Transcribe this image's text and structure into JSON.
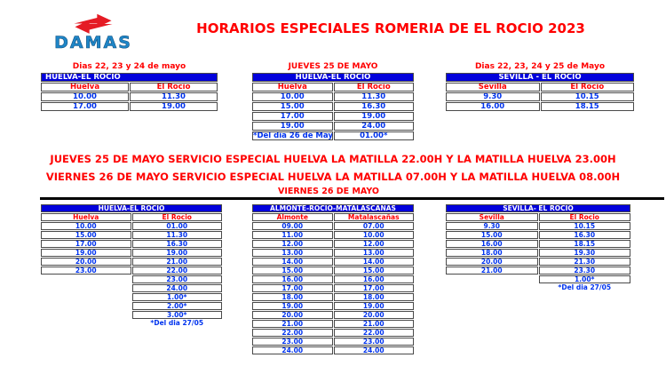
{
  "colors": {
    "header_bg": "#0302dc",
    "time_text": "#0033ee",
    "accent_red": "#ff0000",
    "logo_blue": "#1e86c8",
    "logo_red": "#e51b24"
  },
  "logo": {
    "text": "DAMAS"
  },
  "title": "HORARIOS ESPECIALES ROMERIA DE EL ROCIO 2023",
  "top_tables": [
    {
      "caption": "Dias 22, 23 y 24 de mayo",
      "header": "HUELVA-EL ROCIO",
      "header_align": "left",
      "columns": [
        "Huelva",
        "El Rocio"
      ],
      "rows": [
        [
          "10.00",
          "11.30"
        ],
        [
          "17.00",
          "19.00"
        ]
      ]
    },
    {
      "caption": "JUEVES 25 DE MAYO",
      "header": "HUELVA-EL ROCIO",
      "header_align": "center",
      "columns": [
        "Huelva",
        "El Rocio"
      ],
      "rows": [
        [
          "10.00",
          "11.30"
        ],
        [
          "15.00",
          "16.30"
        ],
        [
          "17.00",
          "19.00"
        ],
        [
          "19.00",
          "24.00"
        ],
        [
          "*Del dia 26 de Mayo",
          "01.00*"
        ]
      ]
    },
    {
      "caption": "Dias 22, 23, 24 y 25 de Mayo",
      "header": "SEVILLA - EL ROCIO",
      "header_align": "center",
      "columns": [
        "Sevilla",
        "El Rocio"
      ],
      "rows": [
        [
          "9.30",
          "10.15"
        ],
        [
          "16.00",
          "18.15"
        ]
      ]
    }
  ],
  "notices": [
    "JUEVES 25 DE MAYO SERVICIO ESPECIAL HUELVA LA MATILLA 22.00H Y LA MATILLA HUELVA 23.00H",
    "VIERNES 26 DE MAYO SERVICIO ESPECIAL HUELVA LA MATILLA 07.00H Y LA MATILLA HUELVA 08.00H"
  ],
  "section_title": "VIERNES 26 DE MAYO",
  "bottom_tables": [
    {
      "header": "HUELVA-EL ROCIO",
      "header_align": "center",
      "columns": [
        "Huelva",
        "El Rocio"
      ],
      "rows": [
        [
          "10.00",
          "01.00"
        ],
        [
          "15.00",
          "11.30"
        ],
        [
          "17.00",
          "16.30"
        ],
        [
          "19.00",
          "19.00"
        ],
        [
          "20.00",
          "21.00"
        ],
        [
          "23.00",
          "22.00"
        ],
        [
          null,
          "23.00"
        ],
        [
          null,
          "24.00"
        ],
        [
          null,
          "1.00*"
        ],
        [
          null,
          "2.00*"
        ],
        [
          null,
          "3.00*"
        ]
      ],
      "footnote": "*Del dia 27/05"
    },
    {
      "header": "ALMONTE-ROCIO-MATALASCANAS",
      "header_align": "center",
      "columns": [
        "Almonte",
        "Matalascañas"
      ],
      "rows": [
        [
          "09.00",
          "07.00"
        ],
        [
          "11.00",
          "10.00"
        ],
        [
          "12.00",
          "12.00"
        ],
        [
          "13.00",
          "13.00"
        ],
        [
          "14.00",
          "14.00"
        ],
        [
          "15.00",
          "15.00"
        ],
        [
          "16.00",
          "16.00"
        ],
        [
          "17.00",
          "17.00"
        ],
        [
          "18.00",
          "18.00"
        ],
        [
          "19.00",
          "19.00"
        ],
        [
          "20.00",
          "20.00"
        ],
        [
          "21.00",
          "21.00"
        ],
        [
          "22.00",
          "22.00"
        ],
        [
          "23.00",
          "23.00"
        ],
        [
          "24.00",
          "24.00"
        ]
      ]
    },
    {
      "header": "SEVILLA- EL ROCIO",
      "header_align": "center",
      "columns": [
        "Sevilla",
        "El Rocio"
      ],
      "rows": [
        [
          "9.30",
          "10.15"
        ],
        [
          "15.00",
          "16.30"
        ],
        [
          "16.00",
          "18.15"
        ],
        [
          "18.00",
          "19.30"
        ],
        [
          "20.00",
          "21.30"
        ],
        [
          "21.00",
          "23.30"
        ],
        [
          null,
          "1.00*"
        ]
      ],
      "footnote": "*Del dia 27/05"
    }
  ]
}
